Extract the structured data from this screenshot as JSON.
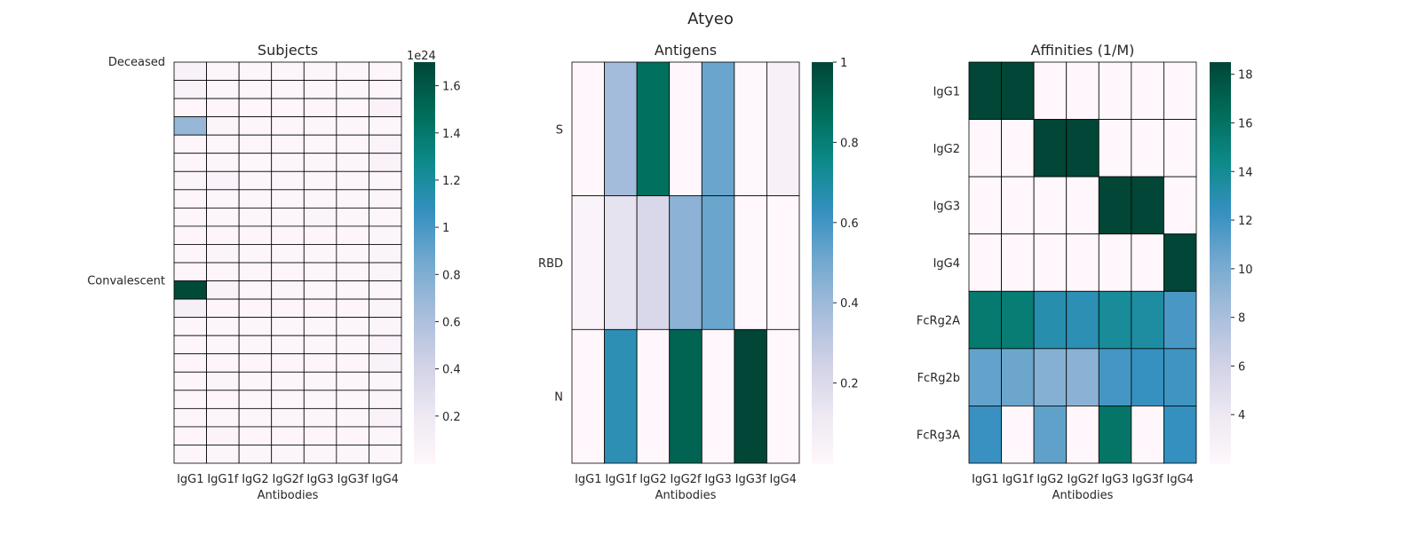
{
  "suptitle": "Atyeo",
  "colors": {
    "cmap": [
      "#fff7fb",
      "#ece7f2",
      "#d0d1e6",
      "#a6bddb",
      "#74a9cf",
      "#3690c0",
      "#0d8a8a",
      "#016c59",
      "#014636"
    ],
    "grid": "#000000"
  },
  "chart_data": [
    {
      "type": "heatmap",
      "title": "Subjects",
      "xlabel": "Antibodies",
      "ylabel": "",
      "x_categories": [
        "IgG1",
        "IgG1f",
        "IgG2",
        "IgG2f",
        "IgG3",
        "IgG3f",
        "IgG4"
      ],
      "y_labels": [
        "Deceased",
        "Convalescent"
      ],
      "y_label_rows": [
        0,
        12
      ],
      "colorbar": {
        "min": 0.0,
        "max": 1.7,
        "ticks": [
          0.2,
          0.4,
          0.6,
          0.8,
          1.0,
          1.2,
          1.4,
          1.6
        ],
        "offset_label": "1e24"
      },
      "values": [
        [
          0.08,
          0.03,
          0.02,
          0.02,
          0.03,
          0.02,
          0.02
        ],
        [
          0.07,
          0.02,
          0.02,
          0.02,
          0.02,
          0.02,
          0.02
        ],
        [
          0.01,
          0.02,
          0.01,
          0.01,
          0.02,
          0.01,
          0.06
        ],
        [
          0.7,
          0.04,
          0.02,
          0.02,
          0.02,
          0.02,
          0.03
        ],
        [
          0.02,
          0.02,
          0.02,
          0.02,
          0.03,
          0.02,
          0.05
        ],
        [
          0.02,
          0.02,
          0.01,
          0.02,
          0.02,
          0.02,
          0.06
        ],
        [
          0.04,
          0.05,
          0.02,
          0.02,
          0.02,
          0.02,
          0.03
        ],
        [
          0.02,
          0.03,
          0.02,
          0.02,
          0.02,
          0.02,
          0.04
        ],
        [
          0.02,
          0.02,
          0.02,
          0.02,
          0.04,
          0.02,
          0.03
        ],
        [
          0.02,
          0.02,
          0.02,
          0.02,
          0.02,
          0.02,
          0.03
        ],
        [
          0.02,
          0.04,
          0.02,
          0.02,
          0.02,
          0.02,
          0.04
        ],
        [
          0.02,
          0.02,
          0.02,
          0.02,
          0.02,
          0.02,
          0.04
        ],
        [
          1.68,
          0.07,
          0.02,
          0.04,
          0.02,
          0.02,
          0.03
        ],
        [
          0.1,
          0.02,
          0.02,
          0.02,
          0.02,
          0.02,
          0.04
        ],
        [
          0.02,
          0.02,
          0.02,
          0.02,
          0.02,
          0.02,
          0.04
        ],
        [
          0.02,
          0.02,
          0.02,
          0.02,
          0.03,
          0.02,
          0.05
        ],
        [
          0.02,
          0.02,
          0.02,
          0.02,
          0.02,
          0.02,
          0.07
        ],
        [
          0.02,
          0.04,
          0.02,
          0.02,
          0.02,
          0.02,
          0.03
        ],
        [
          0.02,
          0.02,
          0.02,
          0.02,
          0.03,
          0.02,
          0.04
        ],
        [
          0.02,
          0.02,
          0.02,
          0.02,
          0.02,
          0.02,
          0.06
        ],
        [
          0.02,
          0.05,
          0.02,
          0.02,
          0.02,
          0.02,
          0.03
        ],
        [
          0.02,
          0.02,
          0.02,
          0.02,
          0.02,
          0.02,
          0.03
        ]
      ]
    },
    {
      "type": "heatmap",
      "title": "Antigens",
      "xlabel": "Antibodies",
      "ylabel": "",
      "x_categories": [
        "IgG1",
        "IgG1f",
        "IgG2",
        "IgG2f",
        "IgG3",
        "IgG3f",
        "IgG4"
      ],
      "y_categories": [
        "S",
        "RBD",
        "N"
      ],
      "colorbar": {
        "min": 0.0,
        "max": 1.0,
        "ticks": [
          0.2,
          0.4,
          0.6,
          0.8,
          1.0
        ]
      },
      "values": [
        [
          0.0,
          0.38,
          0.86,
          0.0,
          0.52,
          0.0,
          0.05
        ],
        [
          0.03,
          0.15,
          0.21,
          0.44,
          0.52,
          0.0,
          0.0
        ],
        [
          0.0,
          0.65,
          0.0,
          0.9,
          0.0,
          1.0,
          0.0
        ]
      ]
    },
    {
      "type": "heatmap",
      "title": "Affinities (1/M)",
      "xlabel": "Antibodies",
      "ylabel": "",
      "x_categories": [
        "IgG1",
        "IgG1f",
        "IgG2",
        "IgG2f",
        "IgG3",
        "IgG3f",
        "IgG4"
      ],
      "y_categories": [
        "IgG1",
        "IgG2",
        "IgG3",
        "IgG4",
        "FcRg2A",
        "FcRg2b",
        "FcRg3A"
      ],
      "colorbar": {
        "min": 2.0,
        "max": 18.5,
        "ticks": [
          4,
          6,
          8,
          10,
          12,
          14,
          16,
          18
        ]
      },
      "values": [
        [
          18.5,
          18.5,
          2.0,
          2.0,
          2.0,
          2.0,
          2.0
        ],
        [
          2.0,
          2.0,
          18.5,
          18.5,
          2.0,
          2.0,
          2.0
        ],
        [
          2.0,
          2.0,
          2.0,
          2.0,
          18.5,
          18.5,
          2.0
        ],
        [
          2.0,
          2.0,
          2.0,
          2.0,
          2.0,
          2.0,
          18.5
        ],
        [
          15.5,
          15.3,
          13.0,
          12.8,
          13.8,
          13.5,
          11.7
        ],
        [
          10.8,
          10.5,
          9.5,
          9.3,
          11.8,
          12.3,
          12.0
        ],
        [
          12.2,
          2.0,
          10.9,
          2.0,
          15.8,
          2.0,
          12.4
        ]
      ]
    }
  ]
}
